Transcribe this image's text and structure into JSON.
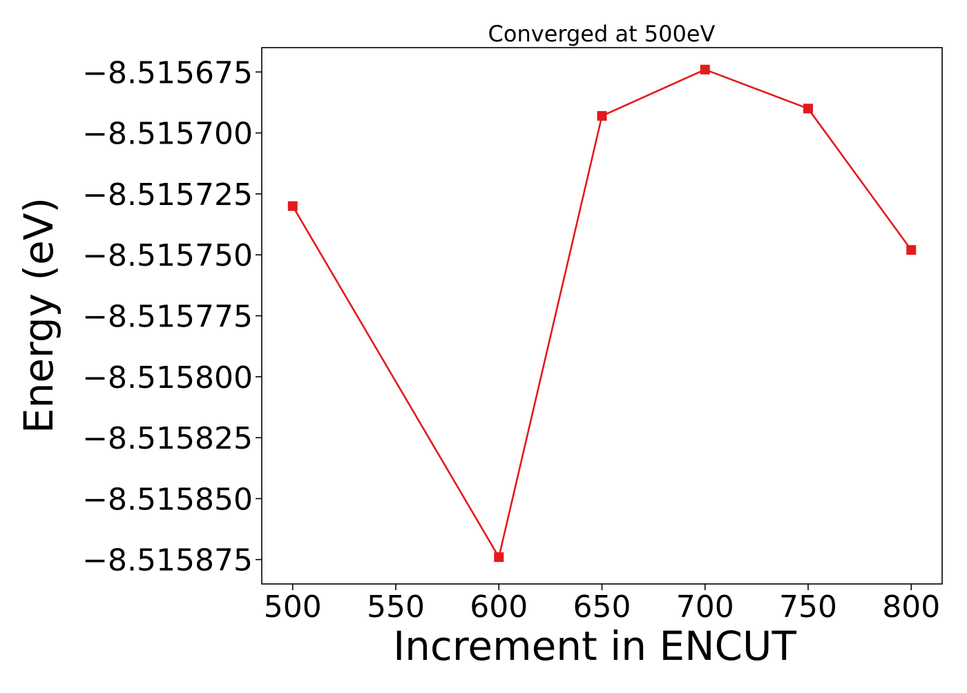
{
  "chart_data": {
    "type": "line",
    "title": "Converged at 500eV",
    "xlabel": "Increment in ENCUT",
    "ylabel": "Energy (eV)",
    "xlim": [
      485,
      815
    ],
    "ylim": [
      -8.515885,
      -8.515665
    ],
    "x_ticks": [
      500,
      550,
      600,
      650,
      700,
      750,
      800
    ],
    "x_tick_labels": [
      "500",
      "550",
      "600",
      "650",
      "700",
      "750",
      "800"
    ],
    "y_ticks": [
      -8.515675,
      -8.5157,
      -8.515725,
      -8.51575,
      -8.515775,
      -8.5158,
      -8.515825,
      -8.51585,
      -8.515875
    ],
    "y_tick_labels": [
      "−8.515675",
      "−8.515700",
      "−8.515725",
      "−8.515750",
      "−8.515775",
      "−8.515800",
      "−8.515825",
      "−8.515850",
      "−8.515875"
    ],
    "grid": false,
    "series": [
      {
        "x": [
          500,
          600,
          650,
          700,
          750,
          800
        ],
        "y": [
          -8.51573,
          -8.515874,
          -8.515693,
          -8.515674,
          -8.51569,
          -8.515748
        ],
        "color": "#e41a1c",
        "marker": "square"
      }
    ]
  }
}
